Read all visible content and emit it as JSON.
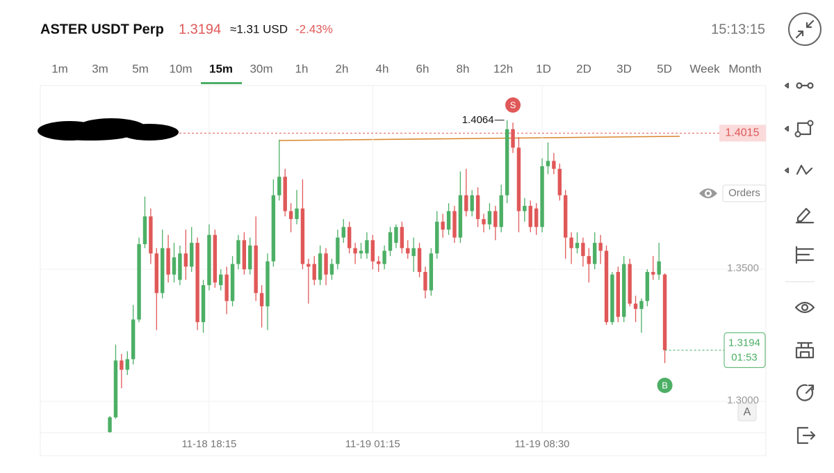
{
  "header": {
    "symbol": "ASTER USDT Perp",
    "price": "1.3194",
    "usd": "≈1.31 USD",
    "change": "-2.43%",
    "time": "15:13:15"
  },
  "timeframes": [
    "1m",
    "3m",
    "5m",
    "10m",
    "15m",
    "30m",
    "1h",
    "2h",
    "4h",
    "6h",
    "8h",
    "12h",
    "1D",
    "2D",
    "3D",
    "5D",
    "Week",
    "Month"
  ],
  "active_timeframe": 4,
  "orders_label": "Orders",
  "scale_mode": "A",
  "chart_data": {
    "type": "candlestick",
    "up_color": "#4caf65",
    "down_color": "#e05858",
    "open": [
      1.2884,
      1.294,
      1.3155,
      1.312,
      1.316,
      1.331,
      1.3595,
      1.37,
      1.356,
      1.341,
      1.358,
      1.348,
      1.346,
      1.356,
      1.351,
      1.36,
      1.33,
      1.344,
      1.363,
      1.344,
      1.348,
      1.338,
      1.352,
      1.361,
      1.35,
      1.359,
      1.341,
      1.336,
      1.353,
      1.378,
      1.385,
      1.372,
      1.369,
      1.373,
      1.352,
      1.352,
      1.346,
      1.356,
      1.348,
      1.352,
      1.362,
      1.366,
      1.358,
      1.356,
      1.356,
      1.361,
      1.353,
      1.352,
      1.357,
      1.36,
      1.366,
      1.358,
      1.355,
      1.358,
      1.349,
      1.342,
      1.356,
      1.368,
      1.365,
      1.372,
      1.362,
      1.378,
      1.372,
      1.378,
      1.369,
      1.367,
      1.372,
      1.366,
      1.378,
      1.403,
      1.396,
      1.372,
      1.374,
      1.373,
      1.366,
      1.389,
      1.391,
      1.388,
      1.378,
      1.362,
      1.358,
      1.36,
      1.355,
      1.352,
      1.36,
      1.357,
      1.33,
      1.349,
      1.332,
      1.352,
      1.337,
      1.335,
      1.338,
      1.349,
      1.348,
      1.348
    ],
    "high": [
      1.2945,
      1.3215,
      1.318,
      1.319,
      1.3365,
      1.362,
      1.3775,
      1.373,
      1.358,
      1.365,
      1.363,
      1.36,
      1.359,
      1.365,
      1.366,
      1.362,
      1.346,
      1.367,
      1.365,
      1.35,
      1.351,
      1.355,
      1.363,
      1.364,
      1.362,
      1.37,
      1.344,
      1.356,
      1.384,
      1.399,
      1.388,
      1.375,
      1.38,
      1.384,
      1.354,
      1.355,
      1.359,
      1.358,
      1.354,
      1.365,
      1.369,
      1.368,
      1.36,
      1.36,
      1.364,
      1.363,
      1.355,
      1.359,
      1.366,
      1.367,
      1.368,
      1.361,
      1.362,
      1.36,
      1.351,
      1.358,
      1.372,
      1.371,
      1.375,
      1.374,
      1.387,
      1.388,
      1.38,
      1.381,
      1.371,
      1.375,
      1.374,
      1.382,
      1.4064,
      1.4055,
      1.4,
      1.377,
      1.376,
      1.375,
      1.392,
      1.398,
      1.394,
      1.39,
      1.38,
      1.364,
      1.364,
      1.362,
      1.358,
      1.364,
      1.363,
      1.359,
      1.349,
      1.351,
      1.355,
      1.354,
      1.34,
      1.339,
      1.35,
      1.355,
      1.36,
      1.3485
    ],
    "low": [
      1.2882,
      1.2935,
      1.305,
      1.31,
      1.314,
      1.33,
      1.358,
      1.352,
      1.327,
      1.339,
      1.345,
      1.345,
      1.344,
      1.346,
      1.349,
      1.327,
      1.326,
      1.342,
      1.343,
      1.342,
      1.333,
      1.336,
      1.35,
      1.348,
      1.348,
      1.338,
      1.328,
      1.327,
      1.351,
      1.376,
      1.37,
      1.364,
      1.367,
      1.35,
      1.337,
      1.344,
      1.344,
      1.344,
      1.346,
      1.35,
      1.36,
      1.356,
      1.352,
      1.354,
      1.354,
      1.35,
      1.349,
      1.35,
      1.355,
      1.358,
      1.356,
      1.354,
      1.349,
      1.347,
      1.339,
      1.34,
      1.354,
      1.362,
      1.363,
      1.36,
      1.36,
      1.37,
      1.37,
      1.366,
      1.364,
      1.365,
      1.361,
      1.364,
      1.375,
      1.394,
      1.364,
      1.368,
      1.364,
      1.363,
      1.364,
      1.386,
      1.386,
      1.376,
      1.354,
      1.352,
      1.356,
      1.351,
      1.345,
      1.35,
      1.352,
      1.329,
      1.329,
      1.33,
      1.33,
      1.336,
      1.33,
      1.326,
      1.336,
      1.346,
      1.346,
      1.3145
    ],
    "close": [
      1.294,
      1.3155,
      1.312,
      1.316,
      1.331,
      1.3595,
      1.37,
      1.356,
      1.341,
      1.358,
      1.348,
      1.3545,
      1.356,
      1.351,
      1.36,
      1.33,
      1.344,
      1.363,
      1.345,
      1.348,
      1.338,
      1.352,
      1.361,
      1.35,
      1.359,
      1.341,
      1.336,
      1.353,
      1.378,
      1.385,
      1.372,
      1.369,
      1.373,
      1.352,
      1.351,
      1.346,
      1.356,
      1.348,
      1.352,
      1.362,
      1.366,
      1.358,
      1.356,
      1.357,
      1.361,
      1.353,
      1.352,
      1.357,
      1.364,
      1.366,
      1.358,
      1.356,
      1.358,
      1.349,
      1.342,
      1.356,
      1.368,
      1.365,
      1.372,
      1.362,
      1.378,
      1.372,
      1.378,
      1.369,
      1.367,
      1.372,
      1.366,
      1.378,
      1.403,
      1.396,
      1.372,
      1.374,
      1.366,
      1.366,
      1.389,
      1.391,
      1.388,
      1.378,
      1.362,
      1.358,
      1.36,
      1.355,
      1.352,
      1.36,
      1.357,
      1.33,
      1.348,
      1.332,
      1.352,
      1.337,
      1.335,
      1.338,
      1.349,
      1.348,
      1.353,
      1.3194
    ],
    "xlim": [
      -11.9,
      112.3
    ],
    "xticks": [
      {
        "value": 17,
        "label": "11-18 18:15"
      },
      {
        "value": 45,
        "label": "11-19 01:15"
      },
      {
        "value": 74,
        "label": "11-19 08:30"
      }
    ],
    "ylim": [
      1.2882,
      1.4195
    ],
    "yticks": [
      {
        "value": 1.35,
        "label": "1.3500"
      },
      {
        "value": 1.3,
        "label": "1.3000"
      }
    ],
    "grid": true,
    "price_line": {
      "value": 1.4015,
      "label": "1.4015"
    },
    "high_label": {
      "value": 1.4064,
      "label": "1.4064",
      "index": 68
    },
    "last_price": {
      "value": 1.3194,
      "label": "1.3194",
      "countdown": "01:53",
      "index": 95
    },
    "sell_marker": {
      "label": "S",
      "index": 69
    },
    "buy_marker": {
      "label": "B",
      "index": 95
    }
  }
}
